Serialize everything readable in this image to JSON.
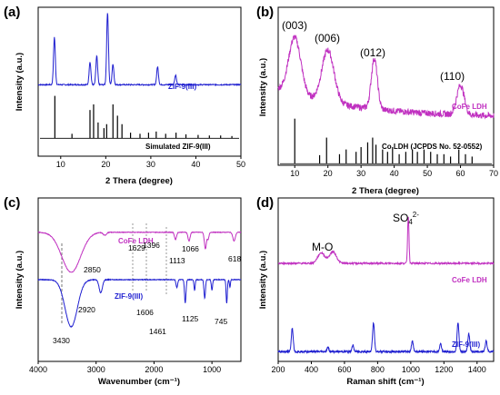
{
  "colors": {
    "blue": "#1f1fd0",
    "magenta": "#c030c0",
    "black": "#000000"
  },
  "chart_data": [
    {
      "id": "a",
      "type": "line",
      "panel_label": "(a)",
      "xlabel": "2 Thera (degree)",
      "ylabel": "Intensity (a.u.)",
      "xlim": [
        5,
        50
      ],
      "xticks": [
        10,
        20,
        30,
        40,
        50
      ],
      "series": [
        {
          "name": "ZIF-9(III)",
          "color": "#1f1fd0",
          "baseline": 0.78,
          "peaks": [
            [
              8.6,
              0.58
            ],
            [
              16.5,
              0.28
            ],
            [
              18.0,
              0.35
            ],
            [
              20.4,
              0.88
            ],
            [
              21.6,
              0.25
            ],
            [
              31.5,
              0.22
            ],
            [
              35.5,
              0.12
            ]
          ]
        },
        {
          "name": "Simulated ZIF-9(III)",
          "color": "#000000",
          "sticks": [
            [
              8.7,
              0.75
            ],
            [
              12.5,
              0.08
            ],
            [
              16.5,
              0.5
            ],
            [
              17.3,
              0.6
            ],
            [
              18.3,
              0.28
            ],
            [
              19.6,
              0.18
            ],
            [
              20.2,
              0.25
            ],
            [
              21.6,
              0.6
            ],
            [
              22.6,
              0.4
            ],
            [
              23.6,
              0.25
            ],
            [
              25.5,
              0.1
            ],
            [
              27.6,
              0.08
            ],
            [
              29.5,
              0.1
            ],
            [
              31.2,
              0.12
            ],
            [
              33.3,
              0.08
            ],
            [
              35.6,
              0.1
            ],
            [
              37.8,
              0.07
            ],
            [
              40.5,
              0.06
            ],
            [
              43.0,
              0.05
            ],
            [
              45.5,
              0.05
            ],
            [
              48.0,
              0.04
            ]
          ]
        }
      ]
    },
    {
      "id": "b",
      "type": "line",
      "panel_label": "(b)",
      "xlabel": "2 Thera (degree)",
      "ylabel": "Intensity (a.u.)",
      "xlim": [
        5,
        70
      ],
      "xticks": [
        10,
        20,
        30,
        40,
        50,
        60,
        70
      ],
      "peak_labels": [
        "(003)",
        "(006)",
        "(012)",
        "(110)"
      ],
      "series": [
        {
          "name": "CoFe LDH",
          "color": "#c030c0",
          "peaks": [
            [
              10.0,
              0.66
            ],
            [
              20.0,
              0.6
            ],
            [
              34.0,
              0.58
            ],
            [
              60.0,
              0.34
            ]
          ]
        },
        {
          "name": "Co LDH (JCPDS No. 52-0552)",
          "color": "#000000",
          "sticks": [
            [
              10.0,
              0.95
            ],
            [
              19.6,
              0.55
            ],
            [
              17.5,
              0.18
            ],
            [
              23.5,
              0.2
            ],
            [
              25.5,
              0.3
            ],
            [
              28.5,
              0.25
            ],
            [
              30.0,
              0.35
            ],
            [
              32.0,
              0.45
            ],
            [
              33.5,
              0.55
            ],
            [
              34.5,
              0.4
            ],
            [
              36.5,
              0.3
            ],
            [
              38.0,
              0.25
            ],
            [
              39.5,
              0.35
            ],
            [
              41.5,
              0.2
            ],
            [
              43.5,
              0.25
            ],
            [
              45.5,
              0.3
            ],
            [
              47.0,
              0.25
            ],
            [
              49.0,
              0.3
            ],
            [
              51.0,
              0.25
            ],
            [
              53.0,
              0.2
            ],
            [
              55.0,
              0.2
            ],
            [
              57.0,
              0.15
            ],
            [
              59.5,
              0.3
            ],
            [
              61.5,
              0.2
            ],
            [
              63.5,
              0.15
            ]
          ]
        }
      ]
    },
    {
      "id": "c",
      "type": "line",
      "panel_label": "(c)",
      "xlabel": "Wavenumber (cm⁻¹)",
      "ylabel": "Intensity (a.u.)",
      "xlim": [
        4000,
        500
      ],
      "xticks": [
        4000,
        3000,
        2000,
        1000
      ],
      "series": [
        {
          "name": "CoFe LDH",
          "color": "#c030c0",
          "labels": [
            "2850",
            "1629",
            "1396",
            "1066",
            "1113",
            "618"
          ],
          "bands": [
            [
              3430,
              0.68,
              230
            ],
            [
              2850,
              0.05,
              40
            ],
            [
              1629,
              0.12,
              25
            ],
            [
              1396,
              0.15,
              25
            ],
            [
              1113,
              0.28,
              25
            ],
            [
              1066,
              0.12,
              20
            ],
            [
              618,
              0.15,
              30
            ]
          ]
        },
        {
          "name": "ZIF-9(III)",
          "color": "#1f1fd0",
          "labels": [
            "3430",
            "2920",
            "1606",
            "1461",
            "1125",
            "745"
          ],
          "bands": [
            [
              3430,
              0.9,
              150
            ],
            [
              2920,
              0.25,
              40
            ],
            [
              1606,
              0.15,
              20
            ],
            [
              1461,
              0.45,
              18
            ],
            [
              1300,
              0.2,
              15
            ],
            [
              1125,
              0.35,
              18
            ],
            [
              1000,
              0.2,
              15
            ],
            [
              745,
              0.45,
              15
            ],
            [
              690,
              0.15,
              12
            ]
          ]
        }
      ]
    },
    {
      "id": "d",
      "type": "line",
      "panel_label": "(d)",
      "xlabel": "Raman shift (cm⁻¹)",
      "ylabel": "Intensity (a.u.)",
      "xlim": [
        200,
        1500
      ],
      "xticks": [
        200,
        400,
        600,
        800,
        1000,
        1200,
        1400
      ],
      "band_labels": {
        "mo": "M-O",
        "so4": "SO",
        "so4_sub": "4",
        "so4_sup": "2-"
      },
      "series": [
        {
          "name": "CoFe LDH",
          "color": "#c030c0",
          "peaks": [
            [
              460,
              0.2
            ],
            [
              530,
              0.22
            ],
            [
              985,
              0.9
            ]
          ]
        },
        {
          "name": "ZIF-9(III)",
          "color": "#1f1fd0",
          "peaks": [
            [
              285,
              0.45
            ],
            [
              500,
              0.08
            ],
            [
              650,
              0.12
            ],
            [
              775,
              0.55
            ],
            [
              1010,
              0.2
            ],
            [
              1180,
              0.15
            ],
            [
              1285,
              0.55
            ],
            [
              1350,
              0.35
            ],
            [
              1455,
              0.2
            ]
          ]
        }
      ]
    }
  ]
}
